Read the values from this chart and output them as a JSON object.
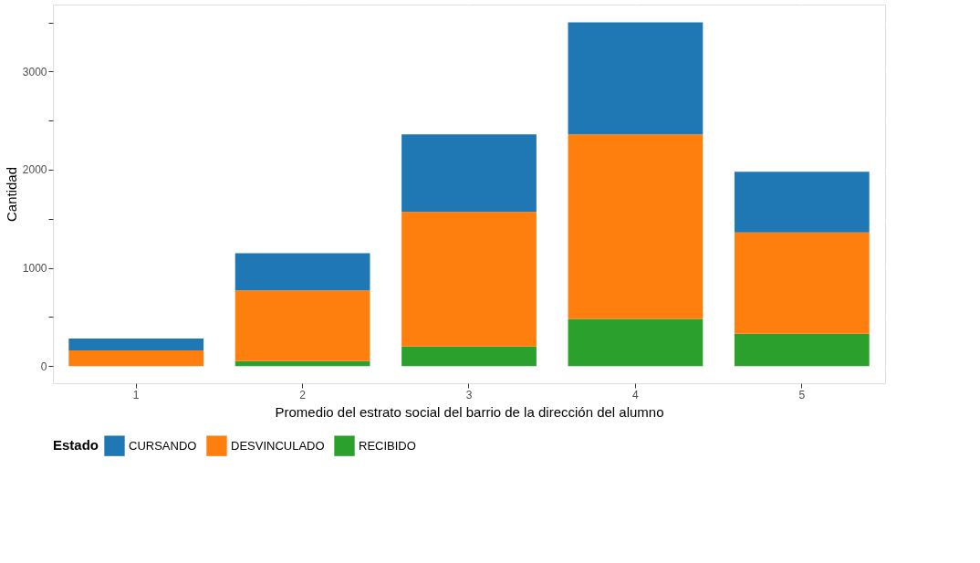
{
  "chart_data": {
    "type": "bar",
    "stacked": true,
    "xlabel": "Promedio del estrato social del barrio de la dirección del alumno",
    "ylabel": "Cantidad",
    "legend_title": "Estado",
    "legend": "bottom",
    "grid": true,
    "categories": [
      "1",
      "2",
      "3",
      "4",
      "5"
    ],
    "ylim": [
      -175,
      3682
    ],
    "yticks": [
      {
        "value": 0,
        "label": "0"
      },
      {
        "value": 500,
        "label": null
      },
      {
        "value": 1000,
        "label": "1000"
      },
      {
        "value": 1500,
        "label": null
      },
      {
        "value": 2000,
        "label": "2000"
      },
      {
        "value": 2500,
        "label": null
      },
      {
        "value": 3000,
        "label": "3000"
      },
      {
        "value": 3500,
        "label": null
      }
    ],
    "series": [
      {
        "name": "RECIBIDO",
        "color": "#2ca02c",
        "values": [
          null,
          50,
          200,
          480,
          330
        ]
      },
      {
        "name": "DESVINCULADO",
        "color": "#ff7f0e",
        "values": [
          160,
          720,
          1370,
          1880,
          1030
        ]
      },
      {
        "name": "CURSANDO",
        "color": "#1f77b4",
        "values": [
          120,
          380,
          790,
          1140,
          620
        ]
      }
    ]
  }
}
